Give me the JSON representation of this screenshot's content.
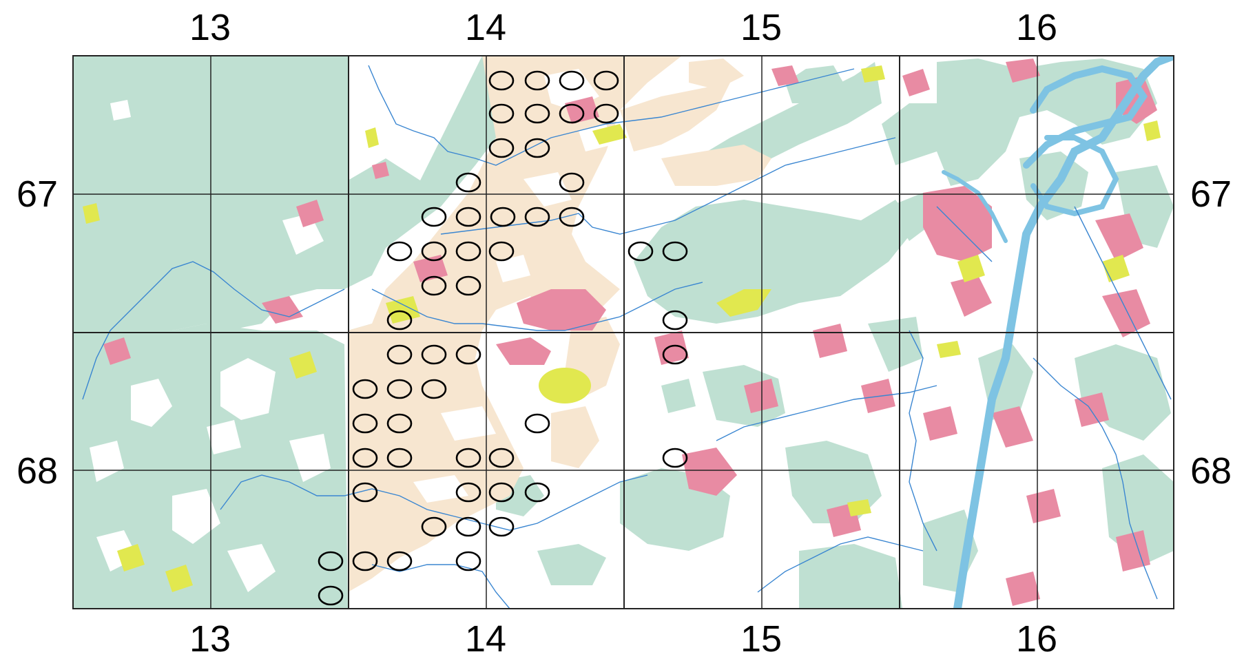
{
  "axes": {
    "top": [
      "13",
      "14",
      "15",
      "16"
    ],
    "bottom": [
      "13",
      "14",
      "15",
      "16"
    ],
    "left": [
      "67",
      "68"
    ],
    "right": [
      "67",
      "68"
    ]
  },
  "legend_colors": {
    "forest": "#bfe0d2",
    "sand": "#f7e6d0",
    "urban": "#e88ba3",
    "yellow": "#e1e84f",
    "water": "#7ec3e3",
    "open": "#ffffff",
    "grid": "#222222"
  },
  "markers": {
    "shape": "ellipse",
    "count": 57
  }
}
